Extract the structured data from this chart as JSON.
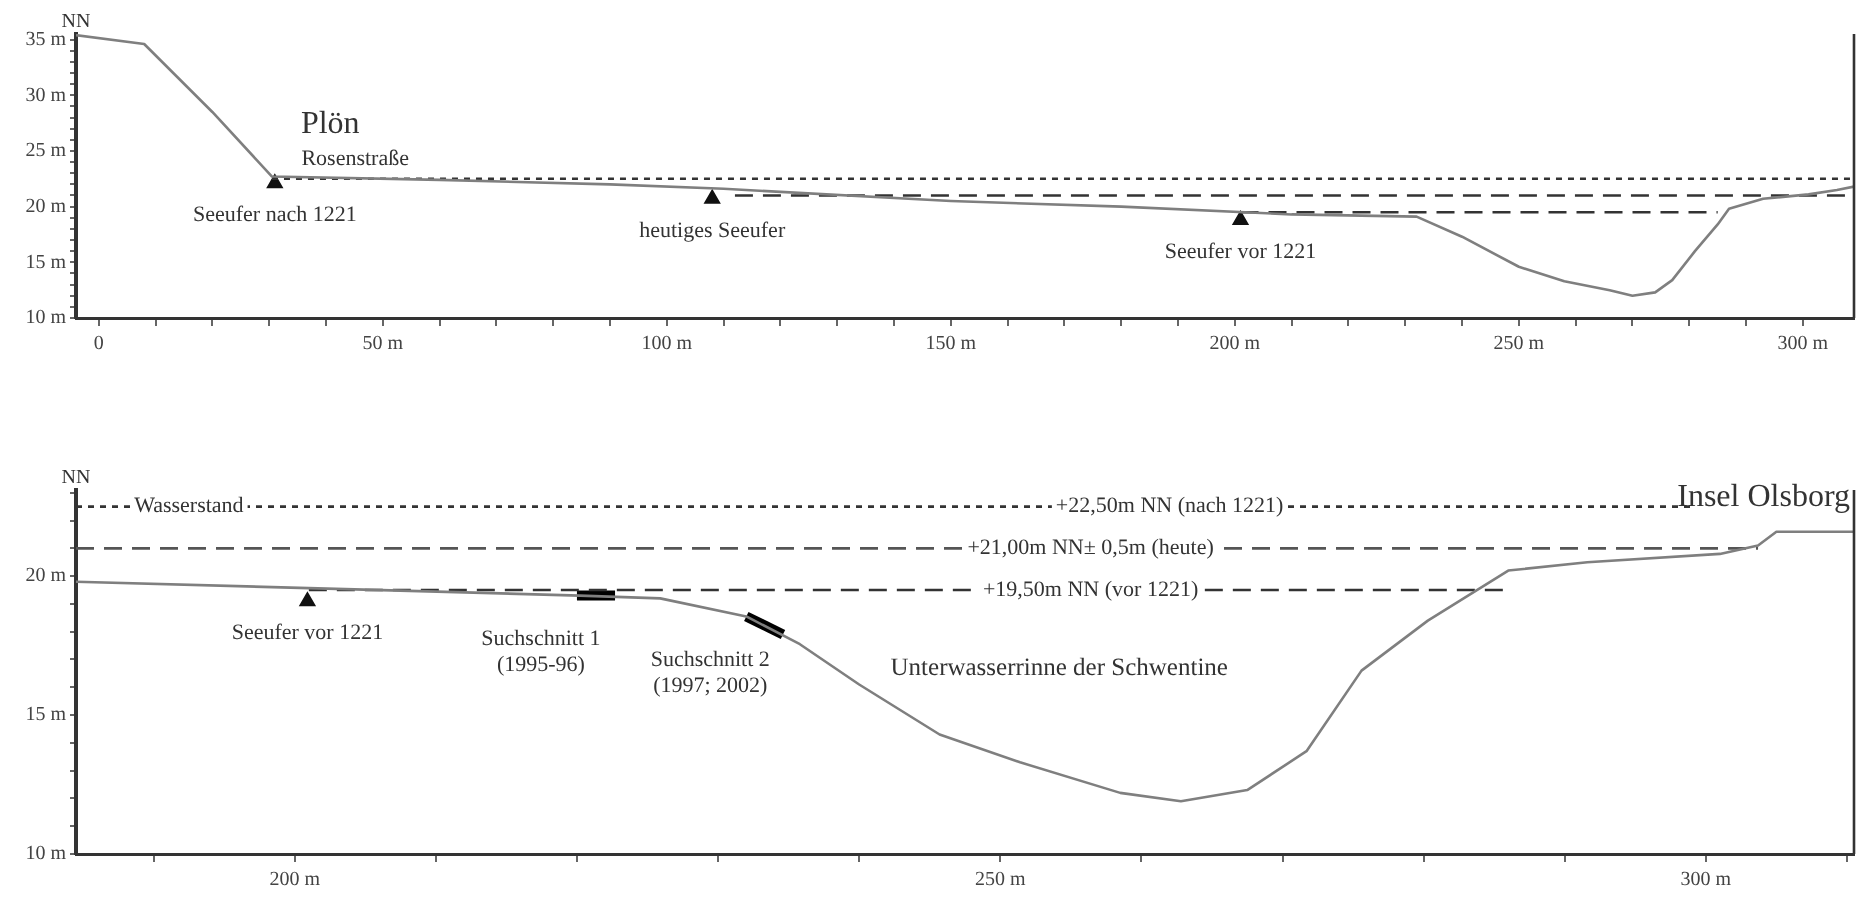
{
  "chart_data": [
    {
      "type": "line",
      "ylabel": "NN",
      "xlim": [
        -4,
        309
      ],
      "ylim": [
        10,
        35.5
      ],
      "xticks": [
        {
          "value": 0,
          "label": "0"
        },
        {
          "value": 10,
          "label": null
        },
        {
          "value": 20,
          "label": null
        },
        {
          "value": 30,
          "label": null
        },
        {
          "value": 40,
          "label": null
        },
        {
          "value": 50,
          "label": "50 m"
        },
        {
          "value": 60,
          "label": null
        },
        {
          "value": 70,
          "label": null
        },
        {
          "value": 80,
          "label": null
        },
        {
          "value": 90,
          "label": null
        },
        {
          "value": 100,
          "label": "100 m"
        },
        {
          "value": 110,
          "label": null
        },
        {
          "value": 120,
          "label": null
        },
        {
          "value": 130,
          "label": null
        },
        {
          "value": 140,
          "label": null
        },
        {
          "value": 150,
          "label": "150 m"
        },
        {
          "value": 160,
          "label": null
        },
        {
          "value": 170,
          "label": null
        },
        {
          "value": 180,
          "label": null
        },
        {
          "value": 190,
          "label": null
        },
        {
          "value": 200,
          "label": "200 m"
        },
        {
          "value": 210,
          "label": null
        },
        {
          "value": 220,
          "label": null
        },
        {
          "value": 230,
          "label": null
        },
        {
          "value": 240,
          "label": null
        },
        {
          "value": 250,
          "label": "250 m"
        },
        {
          "value": 260,
          "label": null
        },
        {
          "value": 270,
          "label": null
        },
        {
          "value": 280,
          "label": null
        },
        {
          "value": 290,
          "label": null
        },
        {
          "value": 300,
          "label": "300 m"
        }
      ],
      "yticks": [
        {
          "value": 10,
          "label": "10 m"
        },
        {
          "value": 11,
          "label": null
        },
        {
          "value": 12,
          "label": null
        },
        {
          "value": 13,
          "label": null
        },
        {
          "value": 14,
          "label": null
        },
        {
          "value": 15,
          "label": "15 m"
        },
        {
          "value": 16,
          "label": null
        },
        {
          "value": 17,
          "label": null
        },
        {
          "value": 18,
          "label": null
        },
        {
          "value": 19,
          "label": null
        },
        {
          "value": 20,
          "label": "20 m"
        },
        {
          "value": 21,
          "label": null
        },
        {
          "value": 22,
          "label": null
        },
        {
          "value": 23,
          "label": null
        },
        {
          "value": 24,
          "label": null
        },
        {
          "value": 25,
          "label": "25 m"
        },
        {
          "value": 26,
          "label": null
        },
        {
          "value": 27,
          "label": null
        },
        {
          "value": 28,
          "label": null
        },
        {
          "value": 29,
          "label": null
        },
        {
          "value": 30,
          "label": "30 m"
        },
        {
          "value": 31,
          "label": null
        },
        {
          "value": 32,
          "label": null
        },
        {
          "value": 33,
          "label": null
        },
        {
          "value": 34,
          "label": null
        },
        {
          "value": 35,
          "label": "35 m"
        }
      ],
      "series": [
        {
          "type": "line",
          "color": "#7f7f7f",
          "line_style": "solid",
          "marker": "none",
          "x": [
            -4,
            8,
            20,
            30.5,
            60,
            90,
            110,
            150,
            180,
            210,
            232,
            240,
            250,
            258,
            266,
            270,
            274,
            277,
            281,
            285,
            287,
            293,
            301,
            306,
            309
          ],
          "values": [
            35.4,
            34.6,
            28.5,
            22.7,
            22.4,
            22,
            21.6,
            20.5,
            20,
            19.3,
            19.1,
            17.3,
            14.6,
            13.3,
            12.5,
            12,
            12.3,
            13.4,
            16,
            18.4,
            19.8,
            20.7,
            21.1,
            21.5,
            21.8
          ]
        },
        {
          "type": "line",
          "color": "#333333",
          "line_style": "dotted",
          "marker": "none",
          "x": [
            30.5,
            309
          ],
          "values": [
            22.5,
            22.5
          ]
        },
        {
          "type": "line",
          "color": "#333333",
          "line_style": "dashed",
          "marker": "none",
          "x": [
            112,
            309
          ],
          "values": [
            21,
            21
          ]
        },
        {
          "type": "line",
          "color": "#333333",
          "line_style": "dashed",
          "marker": "none",
          "x": [
            201,
            285
          ],
          "values": [
            19.5,
            19.5
          ]
        },
        {
          "type": "scatter",
          "color": "#111111",
          "marker": "triangle",
          "x": [
            31,
            108,
            201
          ],
          "values": [
            22.1,
            20.7,
            18.8
          ]
        }
      ],
      "annotations": [
        "Plön",
        "Rosenstraße",
        {
          "text": "Seeufer nach 1221",
          "x": 31,
          "y": 22.1
        },
        {
          "text": "heutiges Seeufer",
          "x": 108,
          "y": 20.7
        },
        {
          "text": "Seeufer vor 1221",
          "x": 201,
          "y": 18.8
        }
      ]
    },
    {
      "type": "line",
      "ylabel": "NN",
      "xlim": [
        184.5,
        310.5
      ],
      "ylim": [
        10,
        23.1
      ],
      "xticks": [
        {
          "value": 190,
          "label": null
        },
        {
          "value": 200,
          "label": "200 m"
        },
        {
          "value": 210,
          "label": null
        },
        {
          "value": 220,
          "label": null
        },
        {
          "value": 230,
          "label": null
        },
        {
          "value": 240,
          "label": null
        },
        {
          "value": 250,
          "label": "250 m"
        },
        {
          "value": 260,
          "label": null
        },
        {
          "value": 270,
          "label": null
        },
        {
          "value": 280,
          "label": null
        },
        {
          "value": 290,
          "label": null
        },
        {
          "value": 300,
          "label": "300 m"
        },
        {
          "value": 310,
          "label": null
        }
      ],
      "yticks": [
        {
          "value": 10,
          "label": "10 m"
        },
        {
          "value": 11,
          "label": null
        },
        {
          "value": 12,
          "label": null
        },
        {
          "value": 13,
          "label": null
        },
        {
          "value": 14,
          "label": null
        },
        {
          "value": 15,
          "label": "15 m"
        },
        {
          "value": 16,
          "label": null
        },
        {
          "value": 17,
          "label": null
        },
        {
          "value": 18,
          "label": null
        },
        {
          "value": 19,
          "label": null
        },
        {
          "value": 20,
          "label": "20 m"
        },
        {
          "value": 21,
          "label": null
        },
        {
          "value": 22,
          "label": null
        },
        {
          "value": 23,
          "label": null
        }
      ],
      "series": [
        {
          "type": "line",
          "color": "#7f7f7f",
          "line_style": "solid",
          "marker": "none",
          "x": [
            184.5,
            220.2,
            225.9,
            232,
            235.8,
            240,
            245.7,
            251.4,
            258.5,
            262.8,
            267.5,
            271.7,
            275.6,
            280.3,
            286,
            291.6,
            301,
            303.7,
            305,
            310.5
          ],
          "values": [
            19.8,
            19.3,
            19.2,
            18.55,
            17.55,
            16.1,
            14.3,
            13.3,
            12.2,
            11.9,
            12.3,
            13.7,
            16.6,
            18.4,
            20.2,
            20.5,
            20.8,
            21.1,
            21.6,
            21.6
          ]
        },
        {
          "type": "line",
          "color": "#333333",
          "line_style": "dotted",
          "marker": "none",
          "x": [
            184.5,
            299
          ],
          "values": [
            22.5,
            22.5
          ]
        },
        {
          "type": "line",
          "color": "#555555",
          "line_style": "dashed",
          "marker": "none",
          "x": [
            184.5,
            303.7
          ],
          "values": [
            21,
            21
          ]
        },
        {
          "type": "line",
          "color": "#333333",
          "line_style": "dashed",
          "marker": "none",
          "x": [
            201,
            286
          ],
          "values": [
            19.5,
            19.5
          ]
        },
        {
          "type": "line",
          "color": "#000000",
          "x": [
            220,
            222.7
          ],
          "values": [
            19.3,
            19.3
          ]
        },
        {
          "type": "line",
          "color": "#000000",
          "x": [
            232,
            234.6
          ],
          "values": [
            18.55,
            17.9
          ]
        },
        {
          "type": "scatter",
          "color": "#111111",
          "marker": "triangle",
          "x": [
            200.9
          ],
          "values": [
            19.1
          ]
        }
      ],
      "annotations": [
        {
          "text": "Wasserstand",
          "x": 192.5,
          "y": 22.5
        },
        {
          "text": "+22,50m NN (nach 1221)",
          "x": 262,
          "y": 22.5
        },
        {
          "text": "+21,00m NN± 0,5m (heute)",
          "x": 256.4,
          "y": 21
        },
        {
          "text": "+19,50m NN (vor 1221)",
          "x": 256.4,
          "y": 19.5
        },
        "Insel Olsborg",
        {
          "text": "Seeufer vor 1221",
          "x": 200.9,
          "y": 19.1
        },
        {
          "text": "Suchschnitt 1\n(1995-96)",
          "x": 220,
          "y": 19.3
        },
        {
          "text": "Suchschnitt 2\n(1997; 2002)",
          "x": 232,
          "y": 18.55
        },
        "Unterwasserrinne der Schwentine"
      ]
    }
  ]
}
